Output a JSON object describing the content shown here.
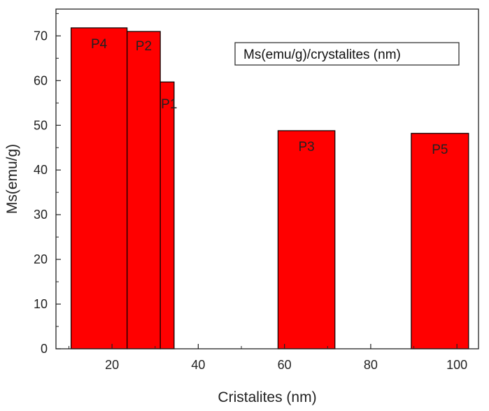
{
  "chart_data": {
    "type": "bar",
    "title": "",
    "xlabel": "Cristalites (nm)",
    "ylabel": "Ms(emu/g)",
    "xlim": [
      7,
      105
    ],
    "ylim": [
      0,
      76
    ],
    "xticks": [
      20,
      40,
      60,
      80,
      100
    ],
    "yticks": [
      0,
      10,
      20,
      30,
      40,
      50,
      60,
      70
    ],
    "grid": false,
    "legend": {
      "text": "Ms(emu/g)/crystalites (nm)",
      "placement": "top-right"
    },
    "bar_color": "#ff0000",
    "bars": [
      {
        "label": "P4",
        "x_start": 10.5,
        "x_end": 23.5,
        "value": 71.8
      },
      {
        "label": "P2",
        "x_start": 23.5,
        "x_end": 31.2,
        "value": 71.0
      },
      {
        "label": "P1",
        "x_start": 31.2,
        "x_end": 34.4,
        "value": 59.7
      },
      {
        "label": "P3",
        "x_start": 58.5,
        "x_end": 71.7,
        "value": 48.8
      },
      {
        "label": "P5",
        "x_start": 89.4,
        "x_end": 102.7,
        "value": 48.2
      }
    ]
  }
}
